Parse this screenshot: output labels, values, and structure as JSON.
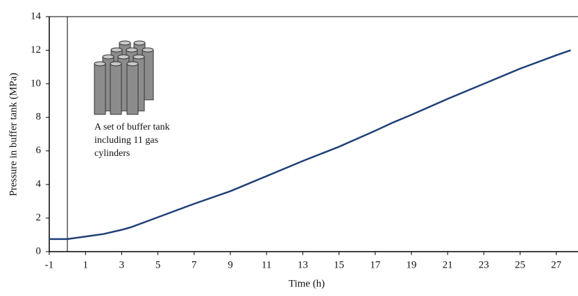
{
  "chart_data": {
    "type": "line",
    "x_label": "Time (h)",
    "y_label": "Pressure in buffer tank (MPa)",
    "x": [
      -1,
      0,
      1,
      2,
      3,
      3.5,
      5,
      7,
      9,
      10,
      11,
      13,
      15,
      17,
      18,
      19,
      21,
      23,
      25,
      27,
      27.8
    ],
    "series": [
      {
        "color": "#1f3f77",
        "values": [
          0.75,
          0.75,
          0.9,
          1.05,
          1.3,
          1.45,
          2.05,
          2.85,
          3.6,
          4.05,
          4.5,
          5.4,
          6.25,
          7.2,
          7.7,
          8.15,
          9.1,
          10.0,
          10.9,
          11.7,
          12.0
        ]
      }
    ],
    "xlim": [
      -1,
      28.2
    ],
    "xticks": [
      -1,
      1,
      3,
      5,
      7,
      9,
      11,
      13,
      15,
      17,
      19,
      21,
      23,
      25,
      27
    ],
    "ylim": [
      0,
      14
    ],
    "yticks": [
      0,
      2,
      4,
      6,
      8,
      10,
      12,
      14
    ],
    "vline_x": 0,
    "annotation": [
      "A set of buffer tank",
      "including 11 gas",
      "cylinders"
    ]
  }
}
